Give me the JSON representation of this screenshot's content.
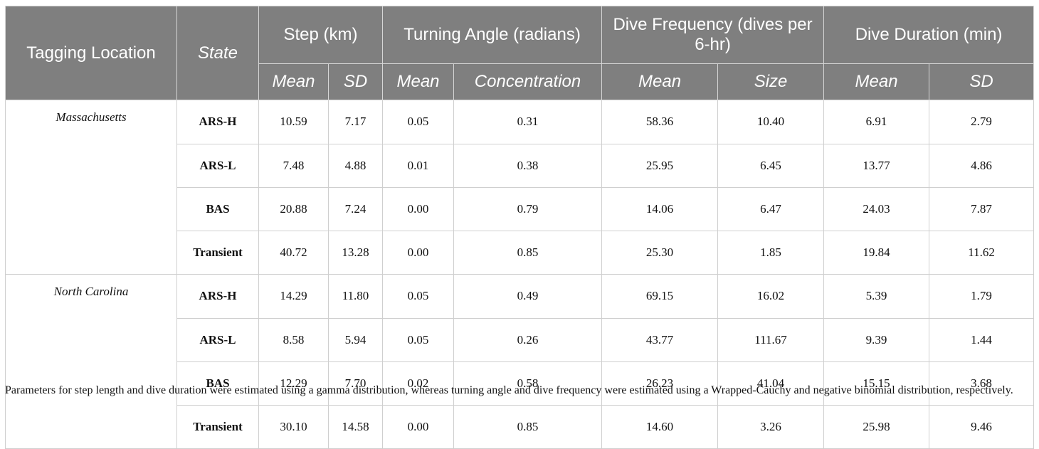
{
  "header": {
    "tagging_location": "Tagging Location",
    "state": "State",
    "groups": [
      "Step (km)",
      "Turning Angle (radians)",
      "Dive Frequency (dives per 6-hr)",
      "Dive Duration (min)"
    ],
    "subheaders": [
      "Mean",
      "SD",
      "Mean",
      "Concentration",
      "Mean",
      "Size",
      "Mean",
      "SD"
    ]
  },
  "rows": [
    {
      "location": "Massachusetts",
      "state": "ARS-H",
      "values": [
        "10.59",
        "7.17",
        "0.05",
        "0.31",
        "58.36",
        "10.40",
        "6.91",
        "2.79"
      ]
    },
    {
      "location": "",
      "state": "ARS-L",
      "values": [
        "7.48",
        "4.88",
        "0.01",
        "0.38",
        "25.95",
        "6.45",
        "13.77",
        "4.86"
      ]
    },
    {
      "location": "",
      "state": "BAS",
      "values": [
        "20.88",
        "7.24",
        "0.00",
        "0.79",
        "14.06",
        "6.47",
        "24.03",
        "7.87"
      ]
    },
    {
      "location": "",
      "state": "Transient",
      "values": [
        "40.72",
        "13.28",
        "0.00",
        "0.85",
        "25.30",
        "1.85",
        "19.84",
        "11.62"
      ]
    },
    {
      "location": "North Carolina",
      "state": "ARS-H",
      "values": [
        "14.29",
        "11.80",
        "0.05",
        "0.49",
        "69.15",
        "16.02",
        "5.39",
        "1.79"
      ]
    },
    {
      "location": "",
      "state": "ARS-L",
      "values": [
        "8.58",
        "5.94",
        "0.05",
        "0.26",
        "43.77",
        "111.67",
        "9.39",
        "1.44"
      ]
    },
    {
      "location": "",
      "state": "BAS",
      "values": [
        "12.29",
        "7.70",
        "0.02",
        "0.58",
        "26.23",
        "41.04",
        "15.15",
        "3.68"
      ]
    },
    {
      "location": "",
      "state": "Transient",
      "values": [
        "30.10",
        "14.58",
        "0.00",
        "0.85",
        "14.60",
        "3.26",
        "25.98",
        "9.46"
      ]
    }
  ],
  "footnote": "Parameters for step length and dive duration were estimated using a gamma distribution, whereas turning angle and dive frequency were estimated using a Wrapped-Cauchy and negative binomial distribution, respectively."
}
